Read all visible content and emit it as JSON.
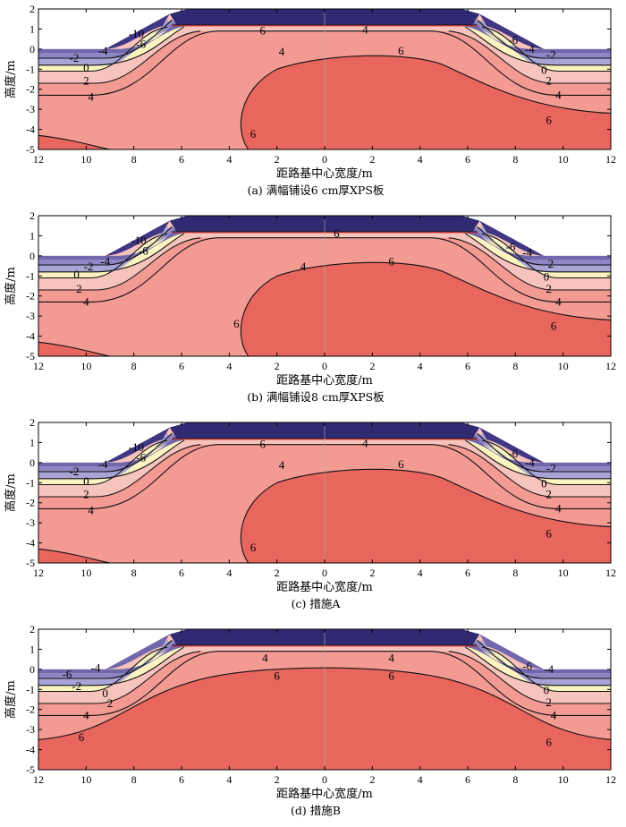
{
  "colors": {
    "c6": "#e8665e",
    "c4": "#f39a93",
    "c2": "#f7c3bd",
    "c0": "#fbf4c0",
    "cm2": "#a9a4d6",
    "cm4": "#8f86c5",
    "cm6": "#7167ad",
    "cm10": "#3f3784",
    "embank": "#2f2a72",
    "line": "#111111",
    "redline": "#d62a20"
  },
  "chart_data": [
    {
      "type": "heatmap",
      "caption": "(a) 满幅铺设6 cm厚XPS板",
      "xlabel": "距路基中心宽度/m",
      "ylabel": "高度/m",
      "xlim": [
        -12,
        12
      ],
      "ylim": [
        -5,
        2
      ],
      "x_ticks": [
        "12",
        "10",
        "8",
        "6",
        "4",
        "2",
        "0",
        "2",
        "4",
        "6",
        "8",
        "10",
        "12"
      ],
      "y_ticks": [
        "2",
        "1",
        "0",
        "-1",
        "-2",
        "-3",
        "-4",
        "-5"
      ],
      "contour_levels": [
        "-10",
        "-6",
        "-4",
        "-2",
        "0",
        "2",
        "4",
        "6"
      ],
      "contour_labels": [
        "-10",
        "-6",
        "-4",
        "-2",
        "0",
        "2",
        "4",
        "6",
        "4",
        "4",
        "6",
        "6",
        "-6",
        "-4",
        "-2",
        "0",
        "2",
        "4",
        "6"
      ],
      "embankment_top": 1.75,
      "ground_level": 0
    },
    {
      "type": "heatmap",
      "caption": "(b) 满幅铺设8 cm厚XPS板",
      "xlabel": "距路基中心宽度/m",
      "ylabel": "高度/m",
      "xlim": [
        -12,
        12
      ],
      "ylim": [
        -5,
        2
      ],
      "x_ticks": [
        "12",
        "10",
        "8",
        "6",
        "4",
        "2",
        "0",
        "2",
        "4",
        "6",
        "8",
        "10",
        "12"
      ],
      "y_ticks": [
        "2",
        "1",
        "0",
        "-1",
        "-2",
        "-3",
        "-4",
        "-5"
      ],
      "contour_levels": [
        "-10",
        "-6",
        "-4",
        "-2",
        "0",
        "2",
        "4",
        "6"
      ],
      "contour_labels": [
        "-10",
        "-6",
        "-4",
        "-2",
        "0",
        "2",
        "4",
        "6",
        "4",
        "6",
        "6",
        "-6",
        "-4",
        "-2",
        "0",
        "2",
        "4",
        "6"
      ],
      "embankment_top": 1.75,
      "ground_level": 0
    },
    {
      "type": "heatmap",
      "caption": "(c) 措施A",
      "xlabel": "距路基中心宽度/m",
      "ylabel": "高度/m",
      "xlim": [
        -12,
        12
      ],
      "ylim": [
        -5,
        2
      ],
      "x_ticks": [
        "12",
        "10",
        "8",
        "6",
        "4",
        "2",
        "0",
        "2",
        "4",
        "6",
        "8",
        "10",
        "12"
      ],
      "y_ticks": [
        "2",
        "1",
        "0",
        "-1",
        "-2",
        "-3",
        "-4",
        "-5"
      ],
      "contour_levels": [
        "-10",
        "-6",
        "-4",
        "-2",
        "0",
        "2",
        "4",
        "6"
      ],
      "contour_labels": [
        "-10",
        "-6",
        "-4",
        "-2",
        "0",
        "2",
        "4",
        "6",
        "4",
        "4",
        "6",
        "6",
        "-6",
        "-4",
        "-2",
        "0",
        "2",
        "4",
        "6"
      ],
      "embankment_top": 1.75,
      "ground_level": 0
    },
    {
      "type": "heatmap",
      "caption": "(d) 措施B",
      "xlabel": "距路基中心宽度/m",
      "ylabel": "高度/m",
      "xlim": [
        -12,
        12
      ],
      "ylim": [
        -5,
        2
      ],
      "x_ticks": [
        "12",
        "10",
        "8",
        "6",
        "4",
        "2",
        "0",
        "2",
        "4",
        "6",
        "8",
        "10",
        "12"
      ],
      "y_ticks": [
        "2",
        "1",
        "0",
        "-1",
        "-2",
        "-3",
        "-4",
        "-5"
      ],
      "contour_levels": [
        "-6",
        "-4",
        "-2",
        "0",
        "2",
        "4",
        "6"
      ],
      "contour_labels": [
        "-6",
        "-4",
        "-2",
        "0",
        "2",
        "4",
        "6",
        "4",
        "4",
        "6",
        "6",
        "-6",
        "-4",
        "0",
        "2",
        "4",
        "6"
      ],
      "embankment_top": 1.75,
      "ground_level": 0
    }
  ]
}
